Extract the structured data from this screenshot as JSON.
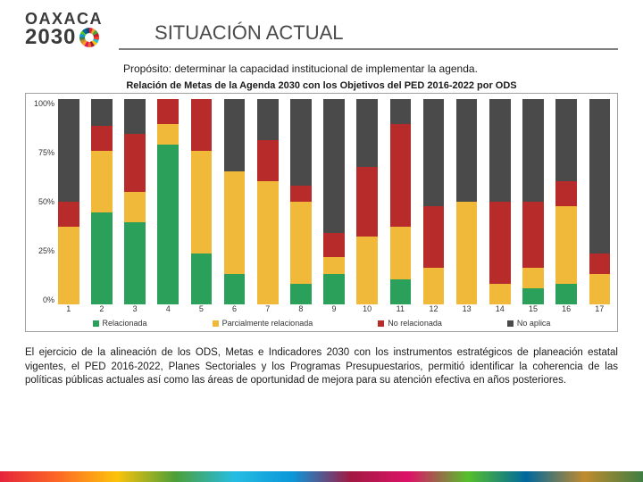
{
  "logo": {
    "top": "OAXACA",
    "year": "2030"
  },
  "title": "SITUACIÓN ACTUAL",
  "proposito": "Propósito: determinar la capacidad institucional de implementar la agenda.",
  "chart_title": "Relación de Metas de la Agenda 2030 con los Objetivos del PED 2016-2022 por ODS",
  "chart": {
    "type": "stacked-bar",
    "yticks": [
      "100%",
      "75%",
      "50%",
      "25%",
      "0%"
    ],
    "xlabels": [
      "1",
      "2",
      "3",
      "4",
      "5",
      "6",
      "7",
      "8",
      "9",
      "10",
      "11",
      "12",
      "13",
      "14",
      "15",
      "16",
      "17"
    ],
    "colors": {
      "relacionada": "#2aa05a",
      "parcial": "#f0b93a",
      "no_rel": "#b82b2b",
      "no_aplica": "#4a4a4a"
    },
    "series": [
      {
        "relacionada": 0,
        "parcial": 38,
        "no_rel": 12,
        "no_aplica": 50
      },
      {
        "relacionada": 45,
        "parcial": 30,
        "no_rel": 12,
        "no_aplica": 13
      },
      {
        "relacionada": 40,
        "parcial": 15,
        "no_rel": 28,
        "no_aplica": 17
      },
      {
        "relacionada": 78,
        "parcial": 10,
        "no_rel": 12,
        "no_aplica": 0
      },
      {
        "relacionada": 25,
        "parcial": 50,
        "no_rel": 25,
        "no_aplica": 0
      },
      {
        "relacionada": 15,
        "parcial": 50,
        "no_rel": 0,
        "no_aplica": 35
      },
      {
        "relacionada": 0,
        "parcial": 60,
        "no_rel": 20,
        "no_aplica": 20
      },
      {
        "relacionada": 10,
        "parcial": 40,
        "no_rel": 8,
        "no_aplica": 42
      },
      {
        "relacionada": 15,
        "parcial": 8,
        "no_rel": 12,
        "no_aplica": 65
      },
      {
        "relacionada": 0,
        "parcial": 33,
        "no_rel": 34,
        "no_aplica": 33
      },
      {
        "relacionada": 12,
        "parcial": 26,
        "no_rel": 50,
        "no_aplica": 12
      },
      {
        "relacionada": 0,
        "parcial": 18,
        "no_rel": 30,
        "no_aplica": 52
      },
      {
        "relacionada": 0,
        "parcial": 50,
        "no_rel": 0,
        "no_aplica": 50
      },
      {
        "relacionada": 0,
        "parcial": 10,
        "no_rel": 40,
        "no_aplica": 50
      },
      {
        "relacionada": 8,
        "parcial": 10,
        "no_rel": 32,
        "no_aplica": 50
      },
      {
        "relacionada": 10,
        "parcial": 38,
        "no_rel": 12,
        "no_aplica": 40
      },
      {
        "relacionada": 0,
        "parcial": 15,
        "no_rel": 10,
        "no_aplica": 75
      }
    ],
    "legend": {
      "relacionada": "Relacionada",
      "parcial": "Parcialmente relacionada",
      "no_rel": "No relacionada",
      "no_aplica": "No aplica"
    }
  },
  "paragraph": "El ejercicio de la alineación de los ODS, Metas e Indicadores 2030 con los instrumentos estratégicos de planeación estatal vigentes, el PED 2016-2022, Planes Sectoriales y los Programas Presupuestarios, permitió identificar la coherencia de las políticas públicas actuales así como las áreas de oportunidad de mejora para su atención efectiva en años posteriores."
}
